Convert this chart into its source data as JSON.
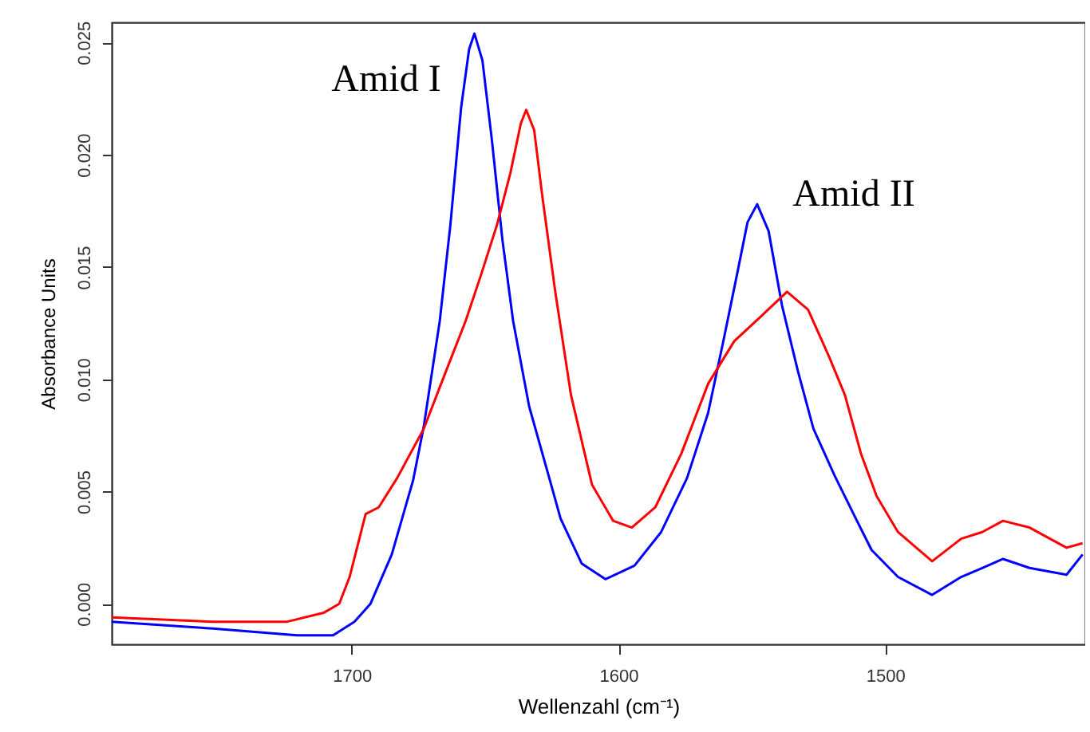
{
  "chart_data": {
    "type": "line",
    "xlabel": "Wellenzahl (cm⁻¹)",
    "ylabel": "Absorbance Units",
    "xlim": [
      1790,
      1425
    ],
    "ylim": [
      -0.0018,
      0.0259
    ],
    "xticks": [
      1700,
      1600,
      1500
    ],
    "yticks": [
      {
        "value": 0,
        "label": "0.000"
      },
      {
        "value": 0.005,
        "label": "0.005"
      },
      {
        "value": 0.01,
        "label": "0.010"
      },
      {
        "value": 0.015,
        "label": "0.015"
      },
      {
        "value": 0.02,
        "label": "0.020"
      },
      {
        "value": 0.025,
        "label": "0.025"
      }
    ],
    "grid": false,
    "line_style": "solid",
    "annotations": [
      "Amid I",
      "Amid II"
    ],
    "series": [
      {
        "color": "#0000ff",
        "x": [
          1790,
          1752,
          1720.5,
          1707,
          1699,
          1693,
          1685,
          1677,
          1673,
          1667,
          1663,
          1659,
          1656,
          1654,
          1651,
          1647.5,
          1643.5,
          1639.5,
          1633.5,
          1625.7,
          1621.7,
          1613.8,
          1604.9,
          1594,
          1584,
          1574.3,
          1566.4,
          1560.5,
          1555.5,
          1551.6,
          1548,
          1543.7,
          1538.7,
          1532.8,
          1526.9,
          1518.9,
          1511,
          1505.1,
          1495.2,
          1482.4,
          1471.5,
          1463.6,
          1455.8,
          1445.9,
          1432,
          1426
        ],
        "values": [
          -0.0008,
          -0.0011,
          -0.0014,
          -0.0014,
          -0.0008,
          0.0,
          0.0022,
          0.0055,
          0.0079,
          0.0126,
          0.0169,
          0.0221,
          0.0247,
          0.0254,
          0.0242,
          0.0207,
          0.0162,
          0.0126,
          0.0088,
          0.0055,
          0.0038,
          0.0018,
          0.0011,
          0.0017,
          0.0032,
          0.0056,
          0.0085,
          0.0118,
          0.0147,
          0.017,
          0.0178,
          0.0166,
          0.0133,
          0.0104,
          0.0078,
          0.0057,
          0.0038,
          0.0024,
          0.0012,
          0.0004,
          0.0012,
          0.0016,
          0.002,
          0.0016,
          0.0013,
          0.0022
        ]
      },
      {
        "color": "#ff0000",
        "x": [
          1790,
          1752,
          1724.5,
          1710.6,
          1704.7,
          1700.8,
          1697.8,
          1694.8,
          1689.9,
          1683,
          1673,
          1665.2,
          1657.3,
          1651.4,
          1645.5,
          1640.5,
          1636.6,
          1634.6,
          1631.6,
          1628.6,
          1623.7,
          1617.8,
          1609.9,
          1602,
          1595,
          1586.2,
          1576.4,
          1566.4,
          1556.6,
          1546.6,
          1536.8,
          1528.9,
          1521,
          1515.1,
          1509.1,
          1503.2,
          1495.2,
          1482.4,
          1471.5,
          1463.6,
          1455.8,
          1445.9,
          1432,
          1426
        ],
        "values": [
          -0.0006,
          -0.0008,
          -0.0008,
          -0.0004,
          0.0,
          0.0012,
          0.0026,
          0.004,
          0.0043,
          0.0056,
          0.0078,
          0.0102,
          0.0126,
          0.0147,
          0.0169,
          0.0192,
          0.0214,
          0.022,
          0.0211,
          0.0182,
          0.0139,
          0.0093,
          0.0053,
          0.0037,
          0.0034,
          0.0043,
          0.0067,
          0.0098,
          0.0117,
          0.0128,
          0.0139,
          0.0131,
          0.011,
          0.0093,
          0.0067,
          0.0048,
          0.0032,
          0.0019,
          0.0029,
          0.0032,
          0.0037,
          0.0034,
          0.0025,
          0.0027
        ]
      }
    ]
  }
}
